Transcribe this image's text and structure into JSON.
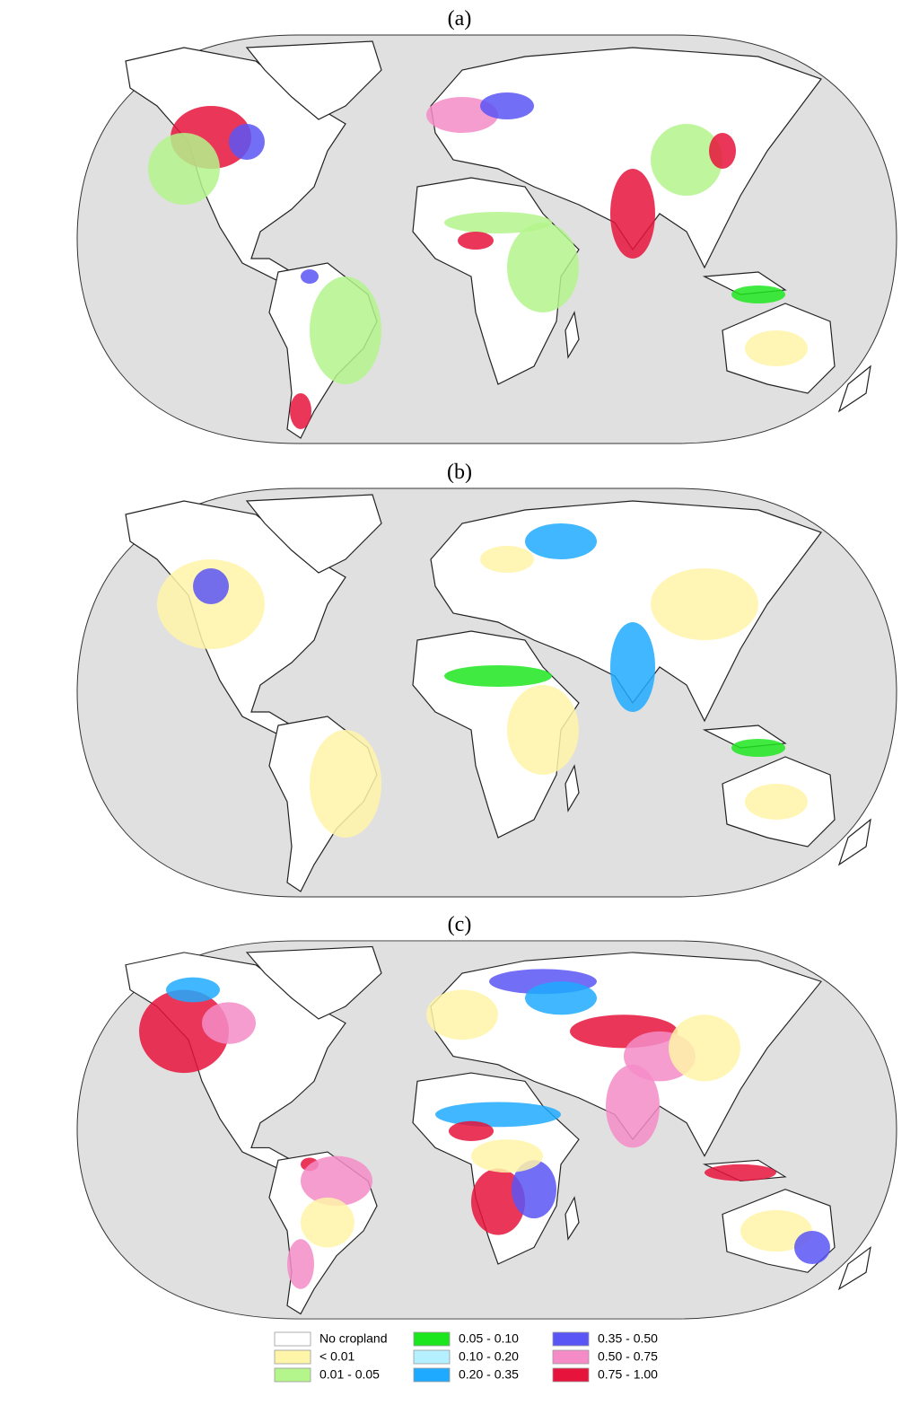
{
  "panels": [
    {
      "label": "(a)"
    },
    {
      "label": "(b)"
    },
    {
      "label": "(c)"
    }
  ],
  "legend": {
    "items": [
      {
        "label": "No cropland",
        "color": "#ffffff"
      },
      {
        "label": "< 0.01",
        "color": "#fff5a8"
      },
      {
        "label": "0.01 - 0.05",
        "color": "#b4f58c"
      },
      {
        "label": "0.05 - 0.10",
        "color": "#1ee61e"
      },
      {
        "label": "0.10 - 0.20",
        "color": "#b4f0ff"
      },
      {
        "label": "0.20 - 0.35",
        "color": "#1eaaff"
      },
      {
        "label": "0.35 - 0.50",
        "color": "#5a55f5"
      },
      {
        "label": "0.50 - 0.75",
        "color": "#f58cc8"
      },
      {
        "label": "0.75 - 1.00",
        "color": "#e6143c"
      }
    ]
  }
}
